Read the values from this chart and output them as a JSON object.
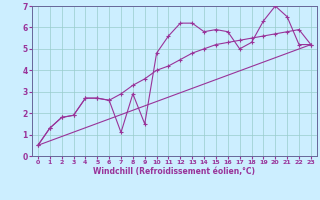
{
  "xlabel": "Windchill (Refroidissement éolien,°C)",
  "bg_color": "#cceeff",
  "grid_color": "#99cccc",
  "line_color": "#993399",
  "spine_color": "#666699",
  "xlim": [
    -0.5,
    23.5
  ],
  "ylim": [
    0,
    7
  ],
  "xticks": [
    0,
    1,
    2,
    3,
    4,
    5,
    6,
    7,
    8,
    9,
    10,
    11,
    12,
    13,
    14,
    15,
    16,
    17,
    18,
    19,
    20,
    21,
    22,
    23
  ],
  "yticks": [
    0,
    1,
    2,
    3,
    4,
    5,
    6,
    7
  ],
  "line1_x": [
    0,
    1,
    2,
    3,
    4,
    5,
    6,
    7,
    8,
    9,
    10,
    11,
    12,
    13,
    14,
    15,
    16,
    17,
    18,
    19,
    20,
    21,
    22,
    23
  ],
  "line1_y": [
    0.5,
    1.3,
    1.8,
    1.9,
    2.7,
    2.7,
    2.6,
    1.1,
    2.9,
    1.5,
    4.8,
    5.6,
    6.2,
    6.2,
    5.8,
    5.9,
    5.8,
    5.0,
    5.3,
    6.3,
    7.0,
    6.5,
    5.2,
    5.2
  ],
  "line2_x": [
    0,
    1,
    2,
    3,
    4,
    5,
    6,
    7,
    8,
    9,
    10,
    11,
    12,
    13,
    14,
    15,
    16,
    17,
    18,
    19,
    20,
    21,
    22,
    23
  ],
  "line2_y": [
    0.5,
    1.3,
    1.8,
    1.9,
    2.7,
    2.7,
    2.6,
    2.9,
    3.3,
    3.6,
    4.0,
    4.2,
    4.5,
    4.8,
    5.0,
    5.2,
    5.3,
    5.4,
    5.5,
    5.6,
    5.7,
    5.8,
    5.9,
    5.2
  ],
  "line3_x": [
    0,
    23
  ],
  "line3_y": [
    0.5,
    5.2
  ]
}
